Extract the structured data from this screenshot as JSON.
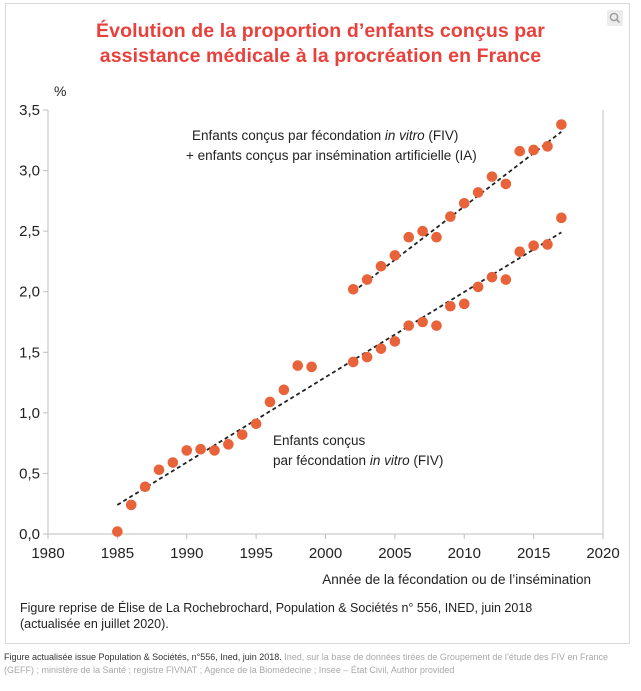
{
  "chart_data": {
    "type": "scatter",
    "title_lines": [
      "Évolution de la proportion d’enfants conçus par",
      "assistance médicale à la procréation en France"
    ],
    "ylabel": "%",
    "xlabel": "Année de la fécondation ou de l’insémination",
    "xlim": [
      1980,
      2020
    ],
    "ylim": [
      0,
      3.5
    ],
    "x_ticks": [
      1980,
      1985,
      1990,
      1995,
      2000,
      2005,
      2010,
      2015,
      2020
    ],
    "y_ticks": [
      "0,0",
      "0,5",
      "1,0",
      "1,5",
      "2,0",
      "2,5",
      "3,0",
      "3,5"
    ],
    "y_tick_values": [
      0,
      0.5,
      1.0,
      1.5,
      2.0,
      2.5,
      3.0,
      3.5
    ],
    "marker_color": "#e8623a",
    "series": [
      {
        "name": "Enfants conçus par fécondation in vitro (FIV)",
        "label_line1": "Enfants conçus",
        "label_line2_pre": "par fécondation ",
        "label_line2_em": "in vitro",
        "label_line2_post": " (FIV)",
        "x": [
          1985,
          1986,
          1987,
          1988,
          1989,
          1990,
          1991,
          1992,
          1993,
          1994,
          1995,
          1996,
          1997,
          1998,
          1999,
          2002,
          2003,
          2004,
          2005,
          2006,
          2007,
          2008,
          2009,
          2010,
          2011,
          2012,
          2013,
          2014,
          2015,
          2016,
          2017
        ],
        "y": [
          0.02,
          0.24,
          0.39,
          0.53,
          0.59,
          0.69,
          0.7,
          0.69,
          0.74,
          0.82,
          0.91,
          1.09,
          1.19,
          1.39,
          1.38,
          1.42,
          1.46,
          1.53,
          1.59,
          1.72,
          1.75,
          1.72,
          1.88,
          1.9,
          2.04,
          2.12,
          2.1,
          2.33,
          2.38,
          2.39,
          2.61
        ],
        "trend": [
          [
            1985,
            0.24
          ],
          [
            2017,
            2.49
          ]
        ]
      },
      {
        "name": "Enfants conçus par fécondation in vitro (FIV) + enfants conçus par insémination artificielle (IA)",
        "label_line1_pre": "Enfants conçus par fécondation ",
        "label_line1_em": "in vitro",
        "label_line1_post": " (FIV)",
        "label_line2": "+ enfants conçus par insémination artificielle (IA)",
        "x": [
          2002,
          2003,
          2004,
          2005,
          2006,
          2007,
          2008,
          2009,
          2010,
          2011,
          2012,
          2013,
          2014,
          2015,
          2016,
          2017
        ],
        "y": [
          2.02,
          2.1,
          2.21,
          2.3,
          2.45,
          2.5,
          2.45,
          2.62,
          2.73,
          2.82,
          2.95,
          2.89,
          3.16,
          3.17,
          3.2,
          3.38
        ],
        "trend": [
          [
            2002,
            2.0
          ],
          [
            2017,
            3.32
          ]
        ]
      }
    ]
  },
  "note_line1": "Figure reprise de Élise de La Rochebrochard, Population & Sociétés n° 556, INED, juin 2018",
  "note_line2": "(actualisée en juillet 2020).",
  "caption_main": "Figure actualisée issue Population & Sociétés, n°556, Ined, juin 2018.",
  "caption_muted": " Ined, sur la base de données tirées de Groupement de l’étude des FIV en France (GEFF) ; ministère de la Santé ; registre FIVNAT ; Agence de la Biomédecine ; Insee – État Civil, Author provided"
}
